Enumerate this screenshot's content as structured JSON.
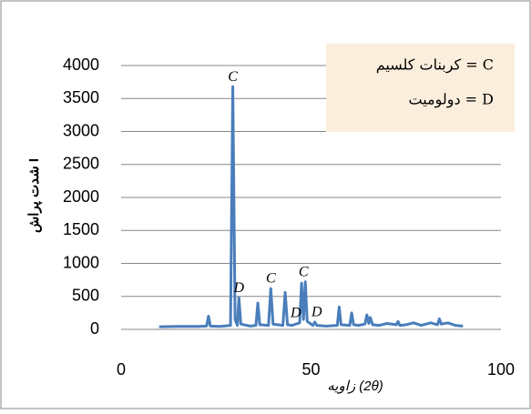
{
  "chart_data": {
    "type": "line",
    "x_label": "زاویه (2θ)",
    "y_label": "شدت پراش I",
    "x": [
      10,
      15,
      20,
      22.5,
      23,
      23.5,
      26,
      28.8,
      29.4,
      30,
      30.6,
      31,
      31.5,
      34,
      35.5,
      36,
      36.5,
      38.8,
      39.4,
      40,
      42.6,
      43.2,
      43.8,
      45,
      47,
      47.5,
      48,
      48.5,
      49,
      50.5,
      51,
      51.5,
      54,
      56.9,
      57.4,
      57.9,
      60.2,
      60.7,
      61.2,
      62.5,
      64.2,
      64.7,
      65.2,
      65.6,
      66.2,
      68,
      70,
      72.5,
      72.9,
      73.4,
      75,
      77,
      79,
      81.5,
      83.3,
      83.8,
      84.3,
      86,
      88,
      90
    ],
    "values": [
      40,
      45,
      45,
      50,
      200,
      50,
      45,
      60,
      3680,
      150,
      60,
      480,
      80,
      50,
      60,
      400,
      70,
      60,
      620,
      80,
      60,
      560,
      70,
      60,
      100,
      700,
      150,
      720,
      120,
      60,
      110,
      60,
      50,
      60,
      340,
      70,
      60,
      250,
      70,
      60,
      80,
      220,
      90,
      180,
      70,
      60,
      90,
      70,
      120,
      60,
      70,
      100,
      60,
      100,
      70,
      160,
      80,
      100,
      60,
      50
    ],
    "color": "#4a7ebb",
    "xlim": [
      0,
      100
    ],
    "xticks": [
      0,
      50,
      100
    ],
    "ylim": [
      0,
      4000
    ],
    "yticks": [
      0,
      500,
      1000,
      1500,
      2000,
      2500,
      3000,
      3500,
      4000
    ],
    "grid": true,
    "annotations": [
      {
        "text": "C",
        "x": 29.4,
        "y": 3680
      },
      {
        "text": "D",
        "x": 31,
        "y": 480
      },
      {
        "text": "C",
        "x": 39.4,
        "y": 620
      },
      {
        "text": "D",
        "x": 46,
        "y": 100
      },
      {
        "text": "C",
        "x": 48,
        "y": 720
      },
      {
        "text": "D",
        "x": 51.5,
        "y": 110
      }
    ],
    "note_box": [
      "کربنات کلسیم = C",
      "دولومیت = D"
    ]
  }
}
